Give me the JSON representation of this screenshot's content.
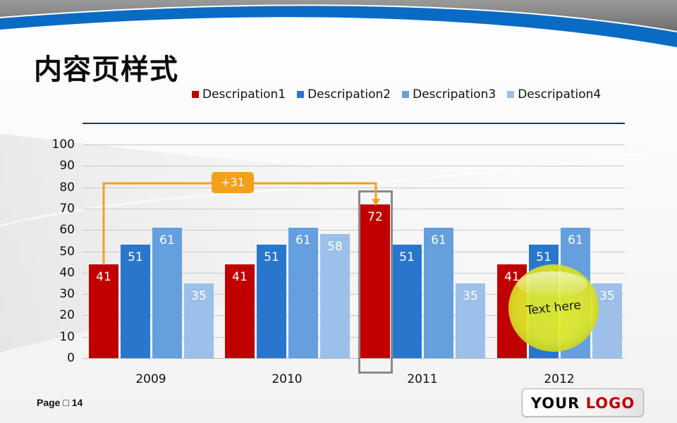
{
  "slide": {
    "title": "内容页样式",
    "page_label": "Page □ 14",
    "logo": {
      "part1": "YOUR",
      "part2": "LOGO"
    }
  },
  "colors": {
    "series1": "#c00000",
    "series2": "#2a76cd",
    "series3": "#659fdd",
    "series4": "#9cc0ea",
    "swoosh_blue": "#0a6bc4",
    "swoosh_gray": "#8a8a8a",
    "callout": "#f5a01a",
    "bubble": "#e2ea2a",
    "highlight_border": "#8a8a8a",
    "legend_rule": "#1f3b55"
  },
  "annotations": {
    "callout_label": "+31",
    "bubble_label": "Text here"
  },
  "chart_data": {
    "type": "bar",
    "title": "",
    "xlabel": "",
    "ylabel": "",
    "ylim": [
      0,
      100
    ],
    "yticks": [
      0,
      10,
      20,
      30,
      40,
      50,
      60,
      70,
      80,
      90,
      100
    ],
    "grid": true,
    "legend_position": "top",
    "categories": [
      "2009",
      "2010",
      "2011",
      "2012"
    ],
    "series": [
      {
        "name": "Descripation1",
        "values": [
          41,
          41,
          72,
          41
        ]
      },
      {
        "name": "Descripation2",
        "values": [
          51,
          51,
          51,
          51
        ]
      },
      {
        "name": "Descripation3",
        "values": [
          61,
          61,
          61,
          61
        ]
      },
      {
        "name": "Descripation4",
        "values": [
          35,
          58,
          35,
          35
        ]
      }
    ],
    "annotations": [
      {
        "type": "arrow",
        "from": "2009 Descripation1",
        "to": "2011 Descripation1",
        "label": "+31"
      },
      {
        "type": "highlight",
        "target": "2011 Descripation1"
      },
      {
        "type": "bubble",
        "near": "2012",
        "label": "Text here"
      }
    ]
  }
}
